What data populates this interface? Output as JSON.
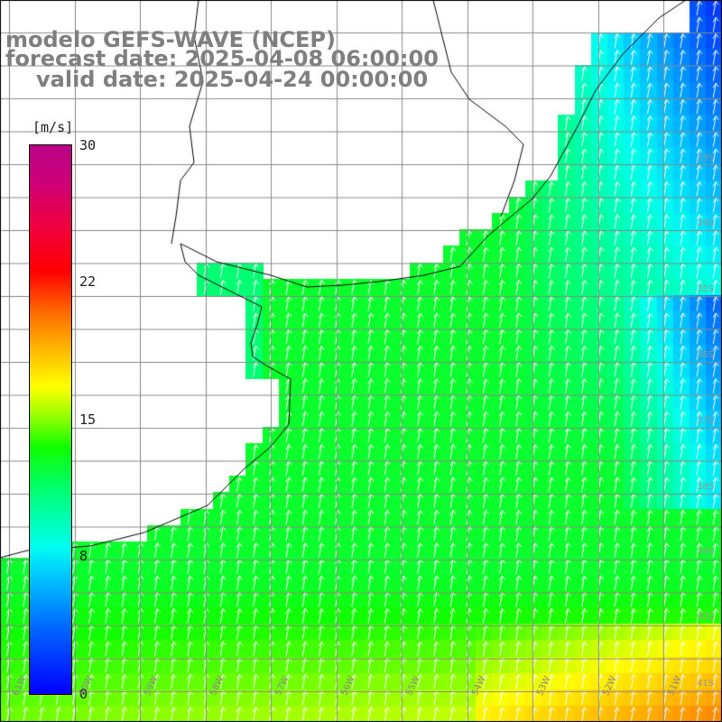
{
  "title": {
    "model": "modelo GEFS-WAVE (NCEP)",
    "forecast": "forecast date: 2025-04-08 06:00:00",
    "valid": "valid date: 2025-04-24 00:00:00"
  },
  "colorbar": {
    "unit": "[m/s]",
    "ticks": [
      "30",
      "22",
      "15",
      "8",
      "0"
    ],
    "range": [
      0,
      30
    ],
    "colors": [
      "#0000ff",
      "#00ccff",
      "#00ffee",
      "#11ff00",
      "#88ff00",
      "#ffff00",
      "#ff6600",
      "#ff0000",
      "#bb0088"
    ]
  },
  "axes": {
    "lon_labels": [
      "61W",
      "60W",
      "59W",
      "58W",
      "57W",
      "56W",
      "55W",
      "54W",
      "53W",
      "52W",
      "51W"
    ],
    "lat_labels": [
      "33S",
      "34S",
      "35S",
      "36S",
      "37S",
      "38S",
      "39S",
      "40S",
      "41S"
    ]
  },
  "map_colors": {
    "land": "#ffffff",
    "coast": "#000000",
    "grid": "#888888",
    "arrow": "#ffffff"
  }
}
